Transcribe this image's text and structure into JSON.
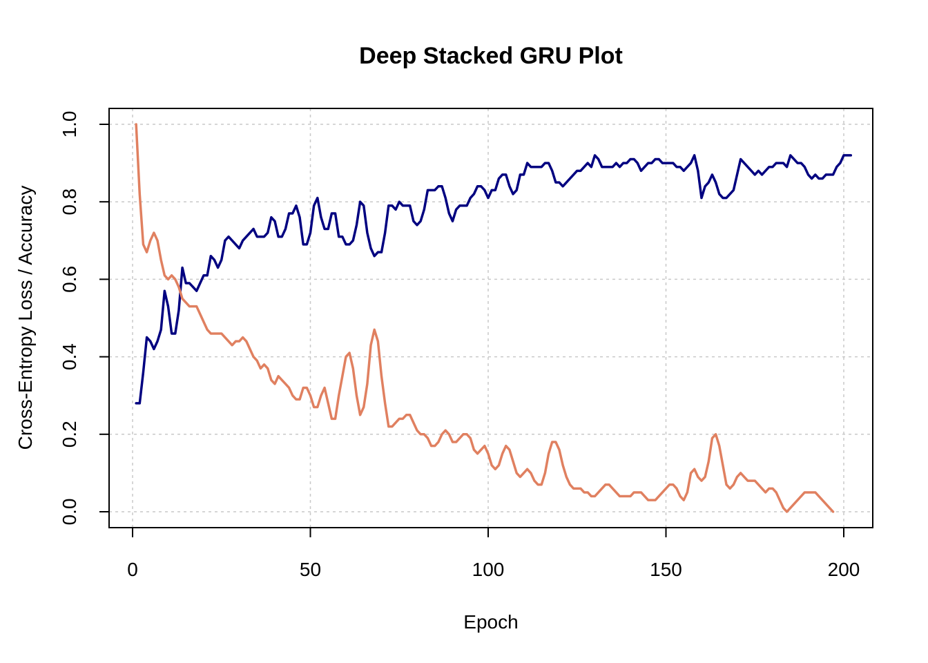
{
  "chart_data": {
    "type": "line",
    "title": "Deep Stacked GRU Plot",
    "xlabel": "Epoch",
    "ylabel": "Cross-Entropy Loss / Accuracy",
    "xlim": [
      1,
      200
    ],
    "ylim": [
      0,
      1
    ],
    "x_ticks": [
      "0",
      "50",
      "100",
      "150",
      "200"
    ],
    "y_ticks": [
      "0.0",
      "0.2",
      "0.4",
      "0.6",
      "0.8",
      "1.0"
    ],
    "grid": true,
    "legend": "none",
    "series": [
      {
        "color": "#000080",
        "values": [
          0.28,
          0.28,
          0.36,
          0.45,
          0.44,
          0.42,
          0.44,
          0.47,
          0.57,
          0.53,
          0.46,
          0.46,
          0.52,
          0.63,
          0.59,
          0.59,
          0.58,
          0.57,
          0.59,
          0.61,
          0.61,
          0.66,
          0.65,
          0.63,
          0.65,
          0.7,
          0.71,
          0.7,
          0.69,
          0.68,
          0.7,
          0.71,
          0.72,
          0.73,
          0.71,
          0.71,
          0.71,
          0.72,
          0.76,
          0.75,
          0.71,
          0.71,
          0.73,
          0.77,
          0.77,
          0.79,
          0.76,
          0.69,
          0.69,
          0.72,
          0.79,
          0.81,
          0.76,
          0.73,
          0.73,
          0.77,
          0.77,
          0.71,
          0.71,
          0.69,
          0.69,
          0.7,
          0.74,
          0.8,
          0.79,
          0.72,
          0.68,
          0.66,
          0.67,
          0.67,
          0.72,
          0.79,
          0.79,
          0.78,
          0.8,
          0.79,
          0.79,
          0.79,
          0.75,
          0.74,
          0.75,
          0.78,
          0.83,
          0.83,
          0.83,
          0.84,
          0.84,
          0.81,
          0.77,
          0.75,
          0.78,
          0.79,
          0.79,
          0.79,
          0.81,
          0.82,
          0.84,
          0.84,
          0.83,
          0.81,
          0.83,
          0.83,
          0.86,
          0.87,
          0.87,
          0.84,
          0.82,
          0.83,
          0.87,
          0.87,
          0.9,
          0.89,
          0.89,
          0.89,
          0.89,
          0.9,
          0.9,
          0.88,
          0.85,
          0.85,
          0.84,
          0.85,
          0.86,
          0.87,
          0.88,
          0.88,
          0.89,
          0.9,
          0.89,
          0.92,
          0.91,
          0.89,
          0.89,
          0.89,
          0.89,
          0.9,
          0.89,
          0.9,
          0.9,
          0.91,
          0.91,
          0.9,
          0.88,
          0.89,
          0.9,
          0.9,
          0.91,
          0.91,
          0.9,
          0.9,
          0.9,
          0.9,
          0.89,
          0.89,
          0.88,
          0.89,
          0.9,
          0.92,
          0.88,
          0.81,
          0.84,
          0.85,
          0.87,
          0.85,
          0.82,
          0.81,
          0.81,
          0.82,
          0.83,
          0.87,
          0.91,
          0.9,
          0.89,
          0.88,
          0.87,
          0.88,
          0.87,
          0.88,
          0.89,
          0.89,
          0.9,
          0.9,
          0.9,
          0.89,
          0.92,
          0.91,
          0.9,
          0.9,
          0.89,
          0.87,
          0.86,
          0.87,
          0.86,
          0.86,
          0.87,
          0.87,
          0.87,
          0.89,
          0.9,
          0.92,
          0.92,
          0.92
        ]
      },
      {
        "color": "#E08060",
        "values": [
          1.0,
          0.82,
          0.69,
          0.67,
          0.7,
          0.72,
          0.7,
          0.65,
          0.61,
          0.6,
          0.61,
          0.6,
          0.58,
          0.55,
          0.54,
          0.53,
          0.53,
          0.53,
          0.51,
          0.49,
          0.47,
          0.46,
          0.46,
          0.46,
          0.46,
          0.45,
          0.44,
          0.43,
          0.44,
          0.44,
          0.45,
          0.44,
          0.42,
          0.4,
          0.39,
          0.37,
          0.38,
          0.37,
          0.34,
          0.33,
          0.35,
          0.34,
          0.33,
          0.32,
          0.3,
          0.29,
          0.29,
          0.32,
          0.32,
          0.3,
          0.27,
          0.27,
          0.3,
          0.32,
          0.28,
          0.24,
          0.24,
          0.3,
          0.35,
          0.4,
          0.41,
          0.37,
          0.3,
          0.25,
          0.27,
          0.33,
          0.43,
          0.47,
          0.44,
          0.35,
          0.28,
          0.22,
          0.22,
          0.23,
          0.24,
          0.24,
          0.25,
          0.25,
          0.23,
          0.21,
          0.2,
          0.2,
          0.19,
          0.17,
          0.17,
          0.18,
          0.2,
          0.21,
          0.2,
          0.18,
          0.18,
          0.19,
          0.2,
          0.2,
          0.19,
          0.16,
          0.15,
          0.16,
          0.17,
          0.15,
          0.12,
          0.11,
          0.12,
          0.15,
          0.17,
          0.16,
          0.13,
          0.1,
          0.09,
          0.1,
          0.11,
          0.1,
          0.08,
          0.07,
          0.07,
          0.1,
          0.15,
          0.18,
          0.18,
          0.16,
          0.12,
          0.09,
          0.07,
          0.06,
          0.06,
          0.06,
          0.05,
          0.05,
          0.04,
          0.04,
          0.05,
          0.06,
          0.07,
          0.07,
          0.06,
          0.05,
          0.04,
          0.04,
          0.04,
          0.04,
          0.05,
          0.05,
          0.05,
          0.04,
          0.03,
          0.03,
          0.03,
          0.04,
          0.05,
          0.06,
          0.07,
          0.07,
          0.06,
          0.04,
          0.03,
          0.05,
          0.1,
          0.11,
          0.09,
          0.08,
          0.09,
          0.13,
          0.19,
          0.2,
          0.17,
          0.12,
          0.07,
          0.06,
          0.07,
          0.09,
          0.1,
          0.09,
          0.08,
          0.08,
          0.08,
          0.07,
          0.06,
          0.05,
          0.06,
          0.06,
          0.05,
          0.03,
          0.01,
          0.0,
          0.01,
          0.02,
          0.03,
          0.04,
          0.05,
          0.05,
          0.05,
          0.05,
          0.04,
          0.03,
          0.02,
          0.01,
          0.0
        ]
      }
    ]
  }
}
